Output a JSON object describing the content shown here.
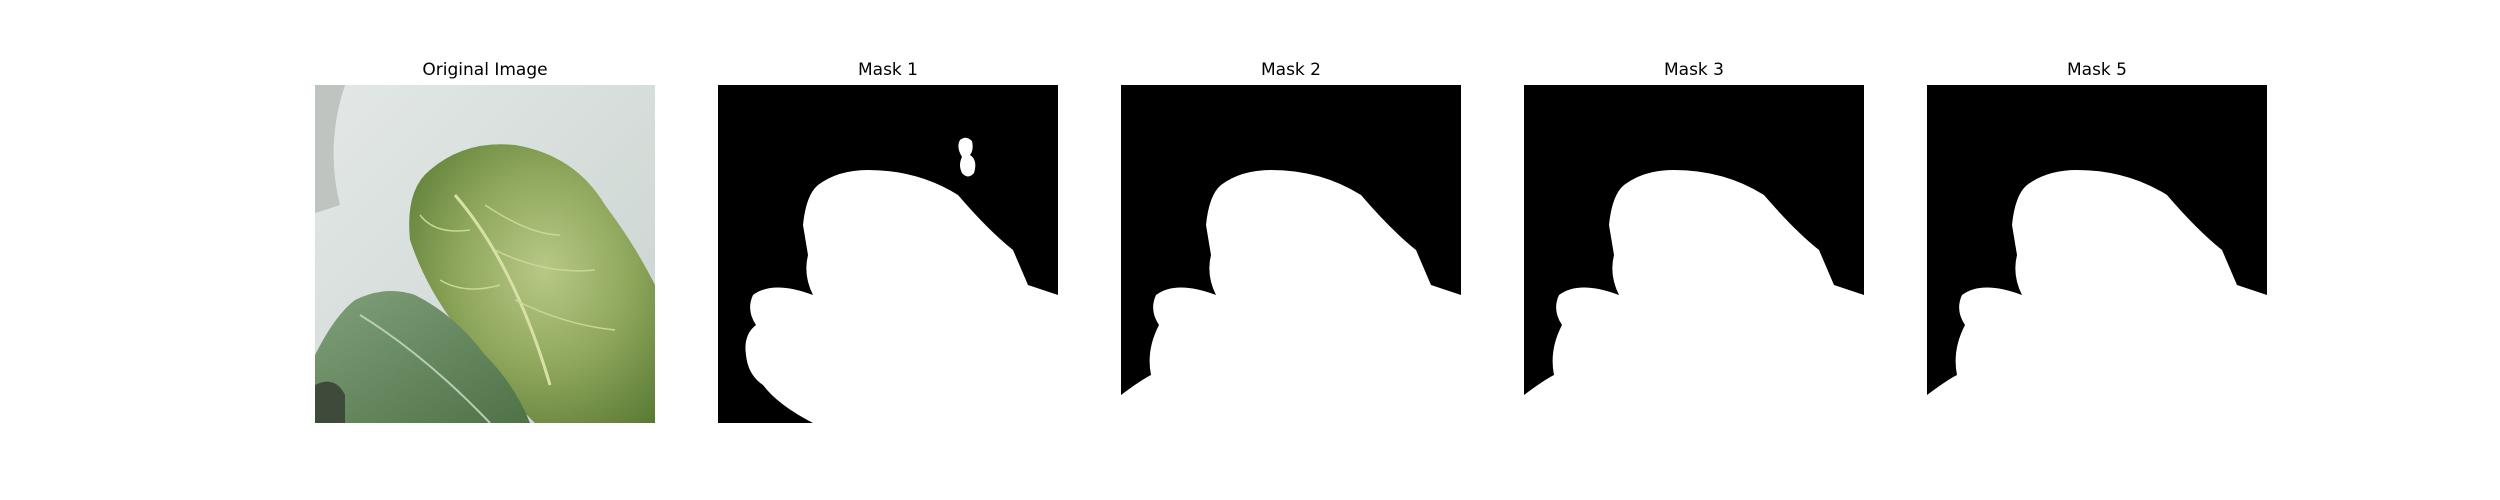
{
  "figure": {
    "panels": [
      {
        "title": "Original Image",
        "kind": "photo",
        "subject": "leaf-photo"
      },
      {
        "title": "Mask 1",
        "kind": "mask",
        "variant": "with-blob"
      },
      {
        "title": "Mask 2",
        "kind": "mask",
        "variant": "plain"
      },
      {
        "title": "Mask 3",
        "kind": "mask",
        "variant": "plain"
      },
      {
        "title": "Mask 5",
        "kind": "mask",
        "variant": "plain"
      }
    ]
  },
  "colors": {
    "mask_background": "#000000",
    "mask_foreground": "#ffffff",
    "photo_backdrop": "#d6dfdc",
    "leaf_light": "#9bb36a",
    "leaf_dark": "#5f7f3a",
    "leaf_lower": "#6f8f63"
  }
}
